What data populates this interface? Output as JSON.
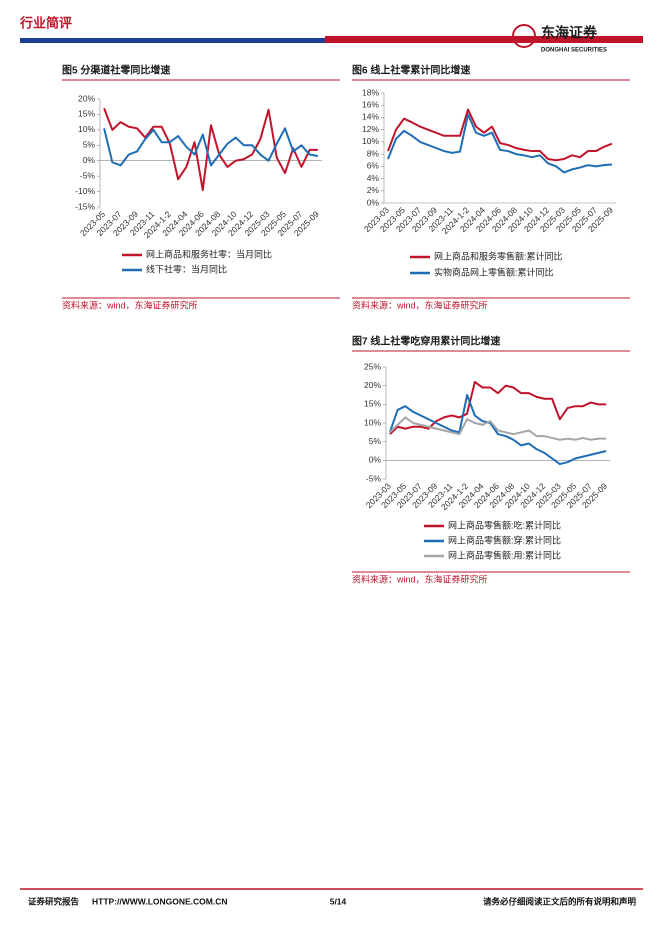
{
  "header": {
    "section": "行业简评",
    "logo_cn": "东海证券",
    "logo_en": "DONGHAI SECURITIES"
  },
  "chart_data": [
    {
      "type": "line",
      "title": "图5  分渠道社零同比增速",
      "note": "资料来源：wind，东海证券研究所",
      "categories": [
        "2023-05",
        null,
        "2023-07",
        null,
        "2023-09",
        null,
        "2023-11",
        null,
        "2024-1-2",
        null,
        "2024-04",
        null,
        "2024-06",
        null,
        "2024-08",
        null,
        "2024-10",
        null,
        "2024-12",
        null,
        "2025-03",
        null,
        "2025-05",
        null,
        "2025-07",
        null,
        "2025-09"
      ],
      "series": [
        {
          "name": "网上商品和服务社零：当月同比",
          "color": "#c0142b",
          "values": [
            17,
            10,
            12.5,
            11,
            10.5,
            7.5,
            11,
            11,
            5.5,
            -6,
            -2,
            6,
            -9.5,
            11.5,
            2,
            -2,
            0,
            0.5,
            2,
            7,
            16.5,
            1,
            -4,
            4,
            -2,
            3.5,
            3.5
          ]
        },
        {
          "name": "线下社零：当月同比",
          "color": "#1f6eb5",
          "values": [
            10.5,
            -0.5,
            -1.5,
            2,
            3,
            7,
            10,
            6,
            6,
            8,
            4.5,
            2,
            8.5,
            -1.5,
            2,
            5.5,
            7.5,
            5,
            5,
            2,
            0,
            5.5,
            10.5,
            3,
            5,
            2,
            1.5
          ]
        }
      ],
      "ylim": [
        -15,
        20
      ],
      "yticks": [
        {
          "value": -15,
          "label": "-15%"
        },
        {
          "value": -10,
          "label": "-10%"
        },
        {
          "value": -5,
          "label": "-5%"
        },
        {
          "value": 0,
          "label": "0%"
        },
        {
          "value": 5,
          "label": "5%"
        },
        {
          "value": 10,
          "label": "10%"
        },
        {
          "value": 15,
          "label": "15%"
        },
        {
          "value": 20,
          "label": "20%"
        }
      ]
    },
    {
      "type": "line",
      "title": "图6  线上社零累计同比增速",
      "note": "资料来源：wind，东海证券研究所",
      "categories": [
        "2023-03",
        null,
        "2023-05",
        null,
        "2023-07",
        null,
        "2023-09",
        null,
        "2023-11",
        null,
        "2024-1-2",
        null,
        "2024-04",
        null,
        "2024-06",
        null,
        "2024-08",
        null,
        "2024-10",
        null,
        "2024-12",
        null,
        "2025-03",
        null,
        "2025-05",
        null,
        "2025-07",
        null,
        "2025-09"
      ],
      "series": [
        {
          "name": "网上商品和服务零售额:累计同比",
          "color": "#c0142b",
          "values": [
            8.5,
            12,
            13.8,
            13.2,
            12.5,
            12,
            11.5,
            11,
            11,
            11,
            15.3,
            12.5,
            11.5,
            12.5,
            9.8,
            9.5,
            9,
            8.7,
            8.5,
            8.5,
            7.2,
            7,
            7.2,
            7.8,
            7.5,
            8.5,
            8.5,
            9.2,
            9.7
          ]
        },
        {
          "name": "实物商品网上零售额:累计同比",
          "color": "#1f6eb5",
          "values": [
            7.2,
            10.5,
            11.8,
            11,
            10,
            9.5,
            9,
            8.5,
            8.2,
            8.4,
            14.5,
            11.5,
            11,
            11.5,
            8.7,
            8.5,
            8,
            7.8,
            7.5,
            7.8,
            6.5,
            6,
            5,
            5.5,
            5.8,
            6.2,
            6,
            6.2,
            6.3
          ]
        }
      ],
      "ylim": [
        0,
        18
      ],
      "yticks": [
        {
          "value": 0,
          "label": "0%"
        },
        {
          "value": 2,
          "label": "2%"
        },
        {
          "value": 4,
          "label": "4%"
        },
        {
          "value": 6,
          "label": "6%"
        },
        {
          "value": 8,
          "label": "8%"
        },
        {
          "value": 10,
          "label": "10%"
        },
        {
          "value": 12,
          "label": "12%"
        },
        {
          "value": 14,
          "label": "14%"
        },
        {
          "value": 16,
          "label": "16%"
        },
        {
          "value": 18,
          "label": "18%"
        }
      ]
    },
    {
      "type": "line",
      "title": "图7  线上社零吃穿用累计同比增速",
      "note": "资料来源：wind，东海证券研究所",
      "categories": [
        "2023-03",
        null,
        "2023-05",
        null,
        "2023-07",
        null,
        "2023-09",
        null,
        "2023-11",
        null,
        "2024-1-2",
        null,
        "2024-04",
        null,
        "2024-06",
        null,
        "2024-08",
        null,
        "2024-10",
        null,
        "2024-12",
        null,
        "2025-03",
        null,
        "2025-05",
        null,
        "2025-07",
        null,
        "2025-09"
      ],
      "series": [
        {
          "name": "网上商品零售额:吃:累计同比",
          "color": "#c0142b",
          "values": [
            7,
            9,
            8.5,
            9,
            9,
            8.5,
            10.5,
            11.5,
            12,
            11.5,
            12.5,
            21,
            19.5,
            19.5,
            18,
            20,
            19.5,
            18,
            18,
            17,
            16.5,
            16.5,
            11,
            14,
            14.5,
            14.5,
            15.5,
            15,
            15
          ]
        },
        {
          "name": "网上商品零售额:穿:累计同比",
          "color": "#1f6eb5",
          "values": [
            7.5,
            13.5,
            14.5,
            13,
            12,
            11,
            10,
            9,
            8,
            7.5,
            17.5,
            12,
            10.5,
            10,
            7,
            6.5,
            5.5,
            4,
            4.5,
            3,
            2,
            0.5,
            -1,
            -0.5,
            0.5,
            1,
            1.5,
            2,
            2.5
          ]
        },
        {
          "name": "网上商品零售额:用:累计同比",
          "color": "#a6a6a6",
          "values": [
            7.5,
            9.5,
            11.5,
            10,
            9.5,
            9,
            8.5,
            8,
            7.5,
            7,
            11,
            10,
            9.5,
            10.5,
            8,
            7.5,
            7,
            7.5,
            8,
            6.5,
            6.5,
            6,
            5.5,
            5.8,
            5.5,
            6,
            5.5,
            5.8,
            5.8
          ]
        }
      ],
      "ylim": [
        -5,
        25
      ],
      "yticks": [
        {
          "value": -5,
          "label": "-5%"
        },
        {
          "value": 0,
          "label": "0%"
        },
        {
          "value": 5,
          "label": "5%"
        },
        {
          "value": 10,
          "label": "10%"
        },
        {
          "value": 15,
          "label": "15%"
        },
        {
          "value": 20,
          "label": "20%"
        },
        {
          "value": 25,
          "label": "25%"
        }
      ]
    }
  ],
  "footer": {
    "left": "证券研究报告",
    "url": "HTTP://WWW.LONGONE.COM.CN",
    "page": "5/14",
    "disclaimer": "请务必仔细阅读正文后的所有说明和声明"
  }
}
